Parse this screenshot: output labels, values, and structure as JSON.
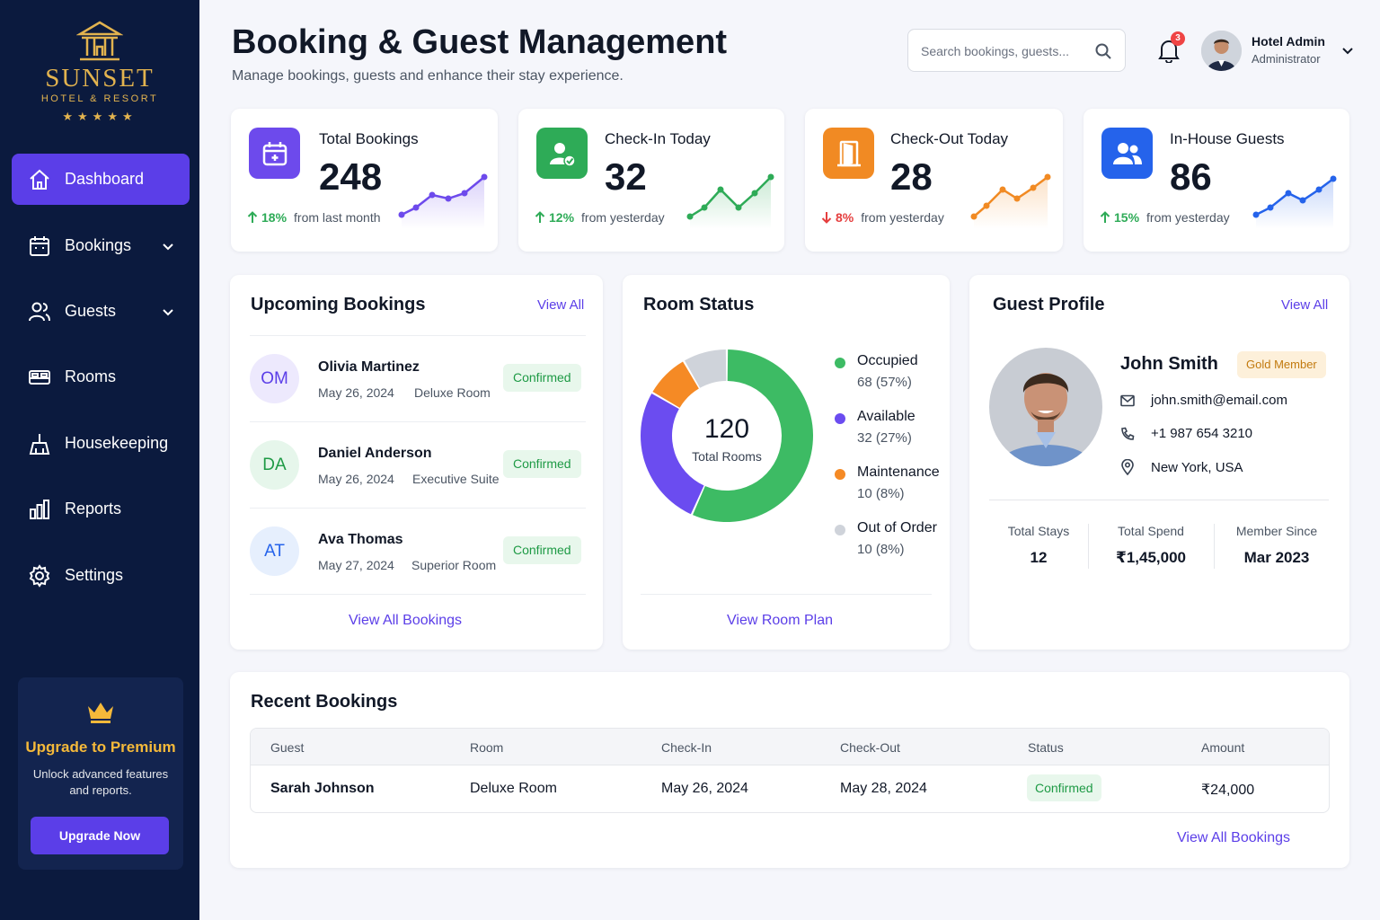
{
  "brand": {
    "name": "SUNSET",
    "tagline": "HOTEL & RESORT",
    "stars": "★★★★★",
    "accent": "#e2b34f"
  },
  "sidebar": {
    "items": [
      {
        "label": "Dashboard",
        "icon": "home-icon",
        "active": true
      },
      {
        "label": "Bookings",
        "icon": "calendar-icon",
        "expandable": true
      },
      {
        "label": "Guests",
        "icon": "users-icon",
        "expandable": true
      },
      {
        "label": "Rooms",
        "icon": "bed-icon"
      },
      {
        "label": "Housekeeping",
        "icon": "broom-icon"
      },
      {
        "label": "Reports",
        "icon": "bar-chart-icon"
      },
      {
        "label": "Settings",
        "icon": "gear-icon"
      }
    ],
    "upgrade": {
      "title": "Upgrade to Premium",
      "description": "Unlock advanced features and reports.",
      "button": "Upgrade Now"
    }
  },
  "header": {
    "title": "Booking & Guest Management",
    "subtitle": "Manage bookings, guests and enhance their stay experience.",
    "search_placeholder": "Search bookings, guests...",
    "notifications": "3",
    "user": {
      "name": "Hotel Admin",
      "role": "Administrator"
    }
  },
  "stats": [
    {
      "label": "Total Bookings",
      "value": "248",
      "trend_pct": "18%",
      "trend_text": "from last month",
      "direction": "up",
      "color": "#6d4aec"
    },
    {
      "label": "Check-In Today",
      "value": "32",
      "trend_pct": "12%",
      "trend_text": "from yesterday",
      "direction": "up",
      "color": "#2eab57"
    },
    {
      "label": "Check-Out Today",
      "value": "28",
      "trend_pct": "8%",
      "trend_text": "from yesterday",
      "direction": "down",
      "color": "#f18a23"
    },
    {
      "label": "In-House Guests",
      "value": "86",
      "trend_pct": "15%",
      "trend_text": "from yesterday",
      "direction": "up",
      "color": "#2563eb"
    }
  ],
  "upcoming": {
    "title": "Upcoming Bookings",
    "view_all": "View All",
    "footer_link": "View All Bookings",
    "items": [
      {
        "initials": "OM",
        "name": "Olivia Martinez",
        "date": "May 26, 2024",
        "room": "Deluxe Room",
        "status": "Confirmed"
      },
      {
        "initials": "DA",
        "name": "Daniel Anderson",
        "date": "May 26, 2024",
        "room": "Executive Suite",
        "status": "Confirmed"
      },
      {
        "initials": "AT",
        "name": "Ava Thomas",
        "date": "May 27, 2024",
        "room": "Superior Room",
        "status": "Confirmed"
      }
    ]
  },
  "room_status": {
    "title": "Room Status",
    "total": "120",
    "total_label": "Total Rooms",
    "footer_link": "View Room Plan",
    "segments": [
      {
        "name": "Occupied",
        "value": 68,
        "display": "68 (57%)",
        "color": "#3dbb64"
      },
      {
        "name": "Available",
        "value": 32,
        "display": "32 (27%)",
        "color": "#6b4cf0"
      },
      {
        "name": "Maintenance",
        "value": 10,
        "display": "10 (8%)",
        "color": "#f58a25"
      },
      {
        "name": "Out of Order",
        "value": 10,
        "display": "10 (8%)",
        "color": "#cfd3da"
      }
    ]
  },
  "guest_profile": {
    "title": "Guest Profile",
    "view_all": "View All",
    "name": "John Smith",
    "tier": "Gold Member",
    "email": "john.smith@email.com",
    "phone": "+1 987 654 3210",
    "location": "New York, USA",
    "stats": [
      {
        "label": "Total Stays",
        "value": "12"
      },
      {
        "label": "Total Spend",
        "value": "₹1,45,000"
      },
      {
        "label": "Member Since",
        "value": "Mar 2023"
      }
    ]
  },
  "recent": {
    "title": "Recent Bookings",
    "columns": [
      "Guest",
      "Room",
      "Check-In",
      "Check-Out",
      "Status",
      "Amount"
    ],
    "rows": [
      {
        "guest": "Sarah Johnson",
        "room": "Deluxe Room",
        "check_in": "May 26, 2024",
        "check_out": "May 28, 2024",
        "status": "Confirmed",
        "amount": "₹24,000"
      }
    ],
    "footer_link": "View All Bookings"
  }
}
